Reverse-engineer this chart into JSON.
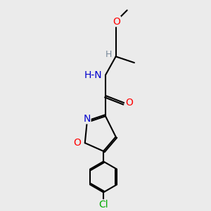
{
  "bg_color": "#ebebeb",
  "atom_colors": {
    "C": "#000000",
    "N": "#0000cd",
    "O": "#ff0000",
    "Cl": "#00aa00",
    "H": "#778899"
  },
  "bond_color": "#000000",
  "bond_width": 1.5,
  "font_size": 9,
  "fig_size": [
    3.0,
    3.0
  ],
  "dpi": 100,
  "xlim": [
    0,
    10
  ],
  "ylim": [
    0,
    10
  ]
}
